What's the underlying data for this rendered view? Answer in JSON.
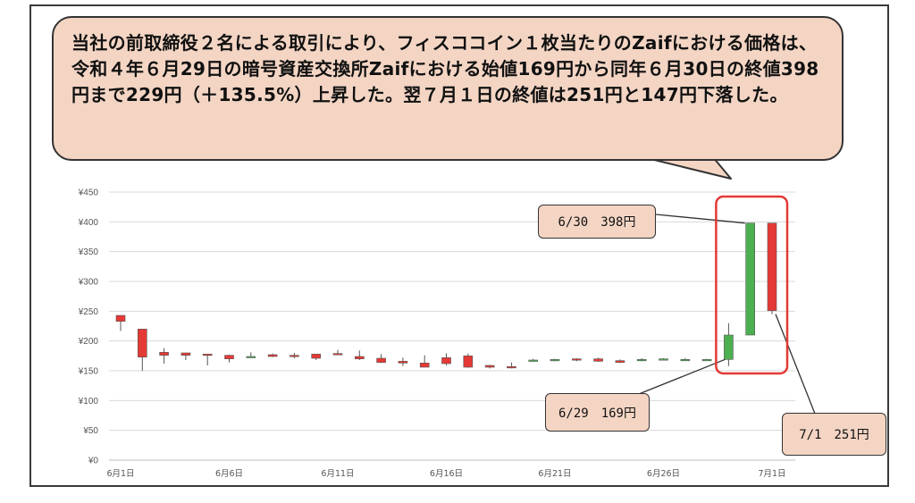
{
  "annotation": {
    "text": "当社の前取締役２名による取引により、フィスココイン１枚当たりのZaifにおける価格は、令和４年６月29日の暗号資産交換所Zaifにおける始値169円から同年６月30日の終値398円まで229円（＋135.5%）上昇した。翌７月１日の終値は251円と147円下落した。"
  },
  "callouts": {
    "jun30": "6/30　398円",
    "jun29": "6/29　169円",
    "jul1": "7/1　251円"
  },
  "colors": {
    "up": "#4caf50",
    "down": "#e53935",
    "grid": "#d9d9d9",
    "highlight": "#e53935"
  },
  "chart_data": {
    "type": "candlestick",
    "title": "",
    "xlabel": "",
    "ylabel": "",
    "ylim": [
      0,
      450
    ],
    "yticks": [
      0,
      50,
      100,
      150,
      200,
      250,
      300,
      350,
      400,
      450
    ],
    "ytick_labels": [
      "¥0",
      "¥50",
      "¥100",
      "¥150",
      "¥200",
      "¥250",
      "¥300",
      "¥350",
      "¥400",
      "¥450"
    ],
    "xtick_labels": [
      {
        "day": 1,
        "label": "6月1日"
      },
      {
        "day": 6,
        "label": "6月6日"
      },
      {
        "day": 11,
        "label": "6月11日"
      },
      {
        "day": 16,
        "label": "6月16日"
      },
      {
        "day": 21,
        "label": "6月21日"
      },
      {
        "day": 26,
        "label": "6月26日"
      },
      {
        "day": 31,
        "label": "7月1日"
      }
    ],
    "grid": true,
    "candles": [
      {
        "date": "6/1",
        "open": 243,
        "high": 243,
        "low": 217,
        "close": 233
      },
      {
        "date": "6/2",
        "open": 220,
        "high": 220,
        "low": 150,
        "close": 173
      },
      {
        "date": "6/3",
        "open": 181,
        "high": 188,
        "low": 162,
        "close": 176
      },
      {
        "date": "6/4",
        "open": 180,
        "high": 180,
        "low": 168,
        "close": 176
      },
      {
        "date": "6/5",
        "open": 178,
        "high": 178,
        "low": 159,
        "close": 177
      },
      {
        "date": "6/6",
        "open": 176,
        "high": 177,
        "low": 164,
        "close": 170
      },
      {
        "date": "6/7",
        "open": 172,
        "high": 181,
        "low": 172,
        "close": 174
      },
      {
        "date": "6/8",
        "open": 177,
        "high": 179,
        "low": 173,
        "close": 174
      },
      {
        "date": "6/9",
        "open": 176,
        "high": 180,
        "low": 171,
        "close": 175
      },
      {
        "date": "6/10",
        "open": 178,
        "high": 178,
        "low": 168,
        "close": 171
      },
      {
        "date": "6/11",
        "open": 179,
        "high": 185,
        "low": 176,
        "close": 178
      },
      {
        "date": "6/12",
        "open": 174,
        "high": 184,
        "low": 168,
        "close": 170
      },
      {
        "date": "6/13",
        "open": 171,
        "high": 178,
        "low": 163,
        "close": 164
      },
      {
        "date": "6/14",
        "open": 166,
        "high": 172,
        "low": 158,
        "close": 163
      },
      {
        "date": "6/15",
        "open": 163,
        "high": 176,
        "low": 156,
        "close": 156
      },
      {
        "date": "6/16",
        "open": 172,
        "high": 179,
        "low": 159,
        "close": 162
      },
      {
        "date": "6/17",
        "open": 175,
        "high": 179,
        "low": 155,
        "close": 156
      },
      {
        "date": "6/18",
        "open": 159,
        "high": 160,
        "low": 154,
        "close": 156
      },
      {
        "date": "6/19",
        "open": 157,
        "high": 164,
        "low": 154,
        "close": 156
      },
      {
        "date": "6/20",
        "open": 167,
        "high": 170,
        "low": 165,
        "close": 168
      },
      {
        "date": "6/21",
        "open": 169,
        "high": 170,
        "low": 166,
        "close": 169
      },
      {
        "date": "6/22",
        "open": 170,
        "high": 171,
        "low": 166,
        "close": 168
      },
      {
        "date": "6/23",
        "open": 170,
        "high": 172,
        "low": 165,
        "close": 166
      },
      {
        "date": "6/24",
        "open": 167,
        "high": 169,
        "low": 163,
        "close": 164
      },
      {
        "date": "6/25",
        "open": 168,
        "high": 171,
        "low": 166,
        "close": 169
      },
      {
        "date": "6/26",
        "open": 169,
        "high": 171,
        "low": 168,
        "close": 170
      },
      {
        "date": "6/27",
        "open": 169,
        "high": 171,
        "low": 168,
        "close": 169
      },
      {
        "date": "6/28",
        "open": 169,
        "high": 170,
        "low": 168,
        "close": 169
      },
      {
        "date": "6/29",
        "open": 169,
        "high": 230,
        "low": 158,
        "close": 210
      },
      {
        "date": "6/30",
        "open": 210,
        "high": 398,
        "low": 210,
        "close": 398
      },
      {
        "date": "7/1",
        "open": 398,
        "high": 398,
        "low": 245,
        "close": 251
      }
    ],
    "highlight_dates": [
      "6/30",
      "7/1"
    ]
  }
}
